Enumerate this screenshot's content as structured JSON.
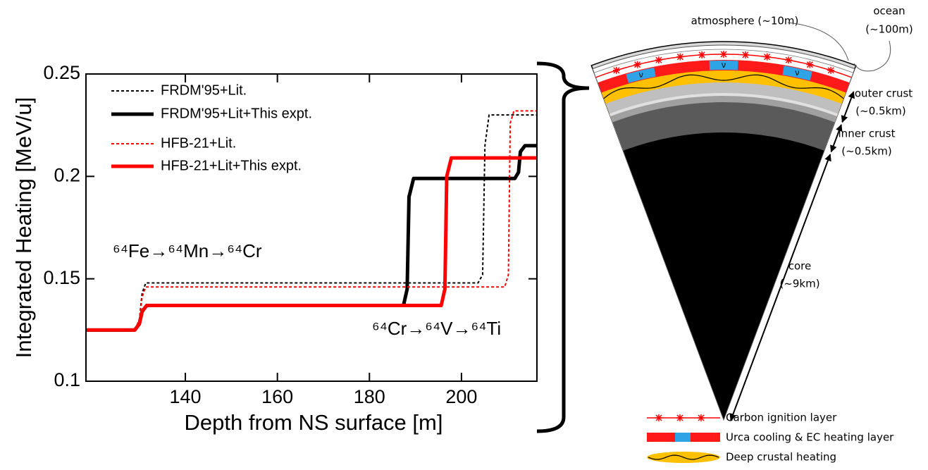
{
  "chart_data": {
    "type": "line",
    "xlabel": "Depth from NS surface [m]",
    "ylabel": "Integrated Heating [MeV/u]",
    "xlim": [
      118.4,
      216.4
    ],
    "ylim": [
      0.1,
      0.25
    ],
    "xticks": [
      140,
      160,
      180,
      200
    ],
    "yticks": [
      0.1,
      0.15,
      0.2,
      0.25
    ],
    "legend": "upper left",
    "annotations": [
      "⁶⁴Fe→⁶⁴Mn→⁶⁴Cr",
      "⁶⁴Cr→⁶⁴V→⁶⁴Ti"
    ],
    "series": [
      {
        "name": "FRDM'95+Lit.",
        "color": "#000000",
        "linestyle": "dotted",
        "linewidth": 2,
        "x": [
          118.4,
          129,
          130,
          130.6,
          131.4,
          203.6,
          204.6,
          205.1,
          206,
          216.4
        ],
        "values": [
          0.125,
          0.125,
          0.13,
          0.143,
          0.148,
          0.148,
          0.152,
          0.215,
          0.23,
          0.23
        ]
      },
      {
        "name": "FRDM'95+Lit+This expt.",
        "color": "#000000",
        "linestyle": "solid",
        "linewidth": 5,
        "x": [
          118.4,
          129,
          130,
          130.6,
          131.6,
          187.4,
          188.2,
          188.6,
          189.6,
          211.6,
          212.4,
          212.8,
          213.8,
          216.4
        ],
        "values": [
          0.125,
          0.125,
          0.128,
          0.134,
          0.137,
          0.137,
          0.145,
          0.19,
          0.199,
          0.199,
          0.202,
          0.212,
          0.215,
          0.215
        ]
      },
      {
        "name": "HFB-21+Lit.",
        "color": "#ff0000",
        "linestyle": "dotted",
        "linewidth": 2,
        "x": [
          118.4,
          129,
          130,
          130.6,
          131.4,
          209.4,
          210.2,
          210.6,
          211.4,
          216.4
        ],
        "values": [
          0.125,
          0.125,
          0.13,
          0.141,
          0.146,
          0.146,
          0.152,
          0.226,
          0.232,
          0.232
        ]
      },
      {
        "name": "HFB-21+Lit+This expt.",
        "color": "#ff0000",
        "linestyle": "solid",
        "linewidth": 5,
        "x": [
          118.4,
          129,
          130,
          130.6,
          131.6,
          195.6,
          196.4,
          196.8,
          197.8,
          216.4
        ],
        "values": [
          0.125,
          0.125,
          0.128,
          0.134,
          0.137,
          0.137,
          0.145,
          0.2,
          0.209,
          0.209
        ]
      }
    ]
  },
  "diagram": {
    "labels": {
      "atmosphere": "atmosphere (~10m)",
      "ocean": "ocean",
      "ocean_depth": "(~100m)",
      "outer_crust": "outer crust",
      "outer_crust_depth": "(~0.5km)",
      "inner_crust": "inner crust",
      "inner_crust_depth": "(~0.5km)",
      "core": "core",
      "core_depth": "(~9km)"
    },
    "nu_symbols": [
      "ν",
      "ν",
      "ν"
    ],
    "legend": [
      "Carbon ignition layer",
      "Urca cooling & EC heating layer",
      "Deep crustal heating"
    ]
  }
}
